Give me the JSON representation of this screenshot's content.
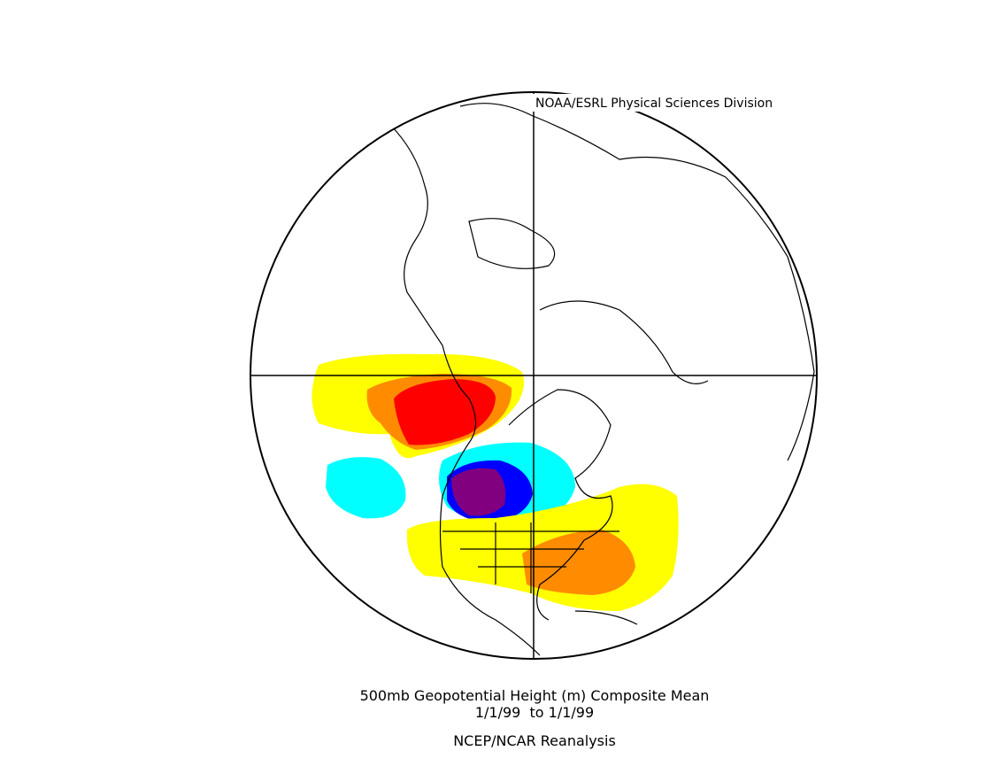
{
  "header": {
    "credit": "NOAA/ESRL Physical Sciences Division"
  },
  "footer": {
    "title": "500mb Geopotential Height (m) Composite Mean",
    "dates": "1/1/99  to 1/1/99",
    "source": "NCEP/NCAR Reanalysis"
  }
}
